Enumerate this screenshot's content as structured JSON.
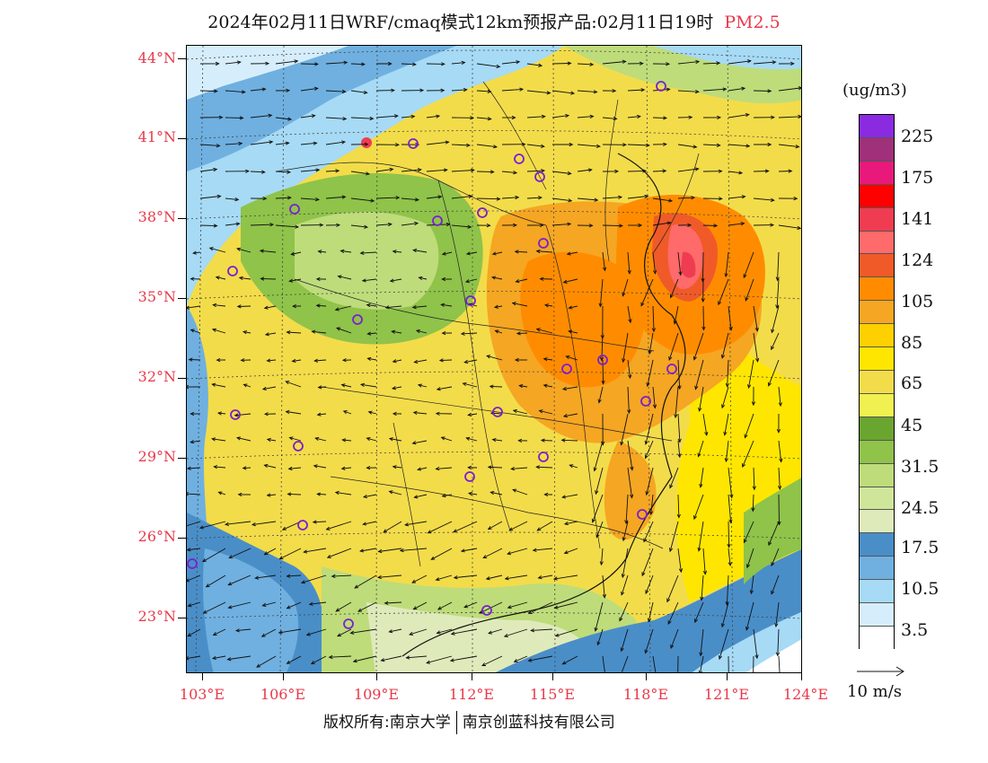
{
  "title": {
    "main": "2024年02月11日WRF/cmaq模式12km预报产品:02月11日19时",
    "variable": "PM2.5"
  },
  "latitude_labels": [
    "44°N",
    "41°N",
    "38°N",
    "35°N",
    "32°N",
    "29°N",
    "26°N",
    "23°N"
  ],
  "longitude_labels": [
    "103°E",
    "106°E",
    "109°E",
    "112°E",
    "115°E",
    "118°E",
    "121°E",
    "124°E"
  ],
  "colorbar": {
    "unit": "(ug/m3)",
    "labels": [
      "225",
      "175",
      "141",
      "124",
      "105",
      "85",
      "65",
      "45",
      "31.5",
      "24.5",
      "17.5",
      "10.5",
      "3.5"
    ],
    "colors": [
      "#8a2be2",
      "#a0307a",
      "#e8197a",
      "#ff0000",
      "#f03c50",
      "#ff6a6a",
      "#f05a28",
      "#ff8c00",
      "#f5a623",
      "#ffd000",
      "#ffe600",
      "#f3dc4a",
      "#f0f050",
      "#6aa52f",
      "#8fc34a",
      "#bedc7a",
      "#cfe69a",
      "#dfeabb",
      "#4a8ec8",
      "#6fb0e0",
      "#a6daf5",
      "#d6eefb",
      "#ffffff"
    ]
  },
  "vector_reference": "10 m/s",
  "footer": {
    "copyright": "版权所有:南京大学",
    "company": "南京创蓝科技有限公司"
  },
  "legend_colors": {
    "accent_red": "#e8394a",
    "station_marker": "#7b1fd0"
  }
}
